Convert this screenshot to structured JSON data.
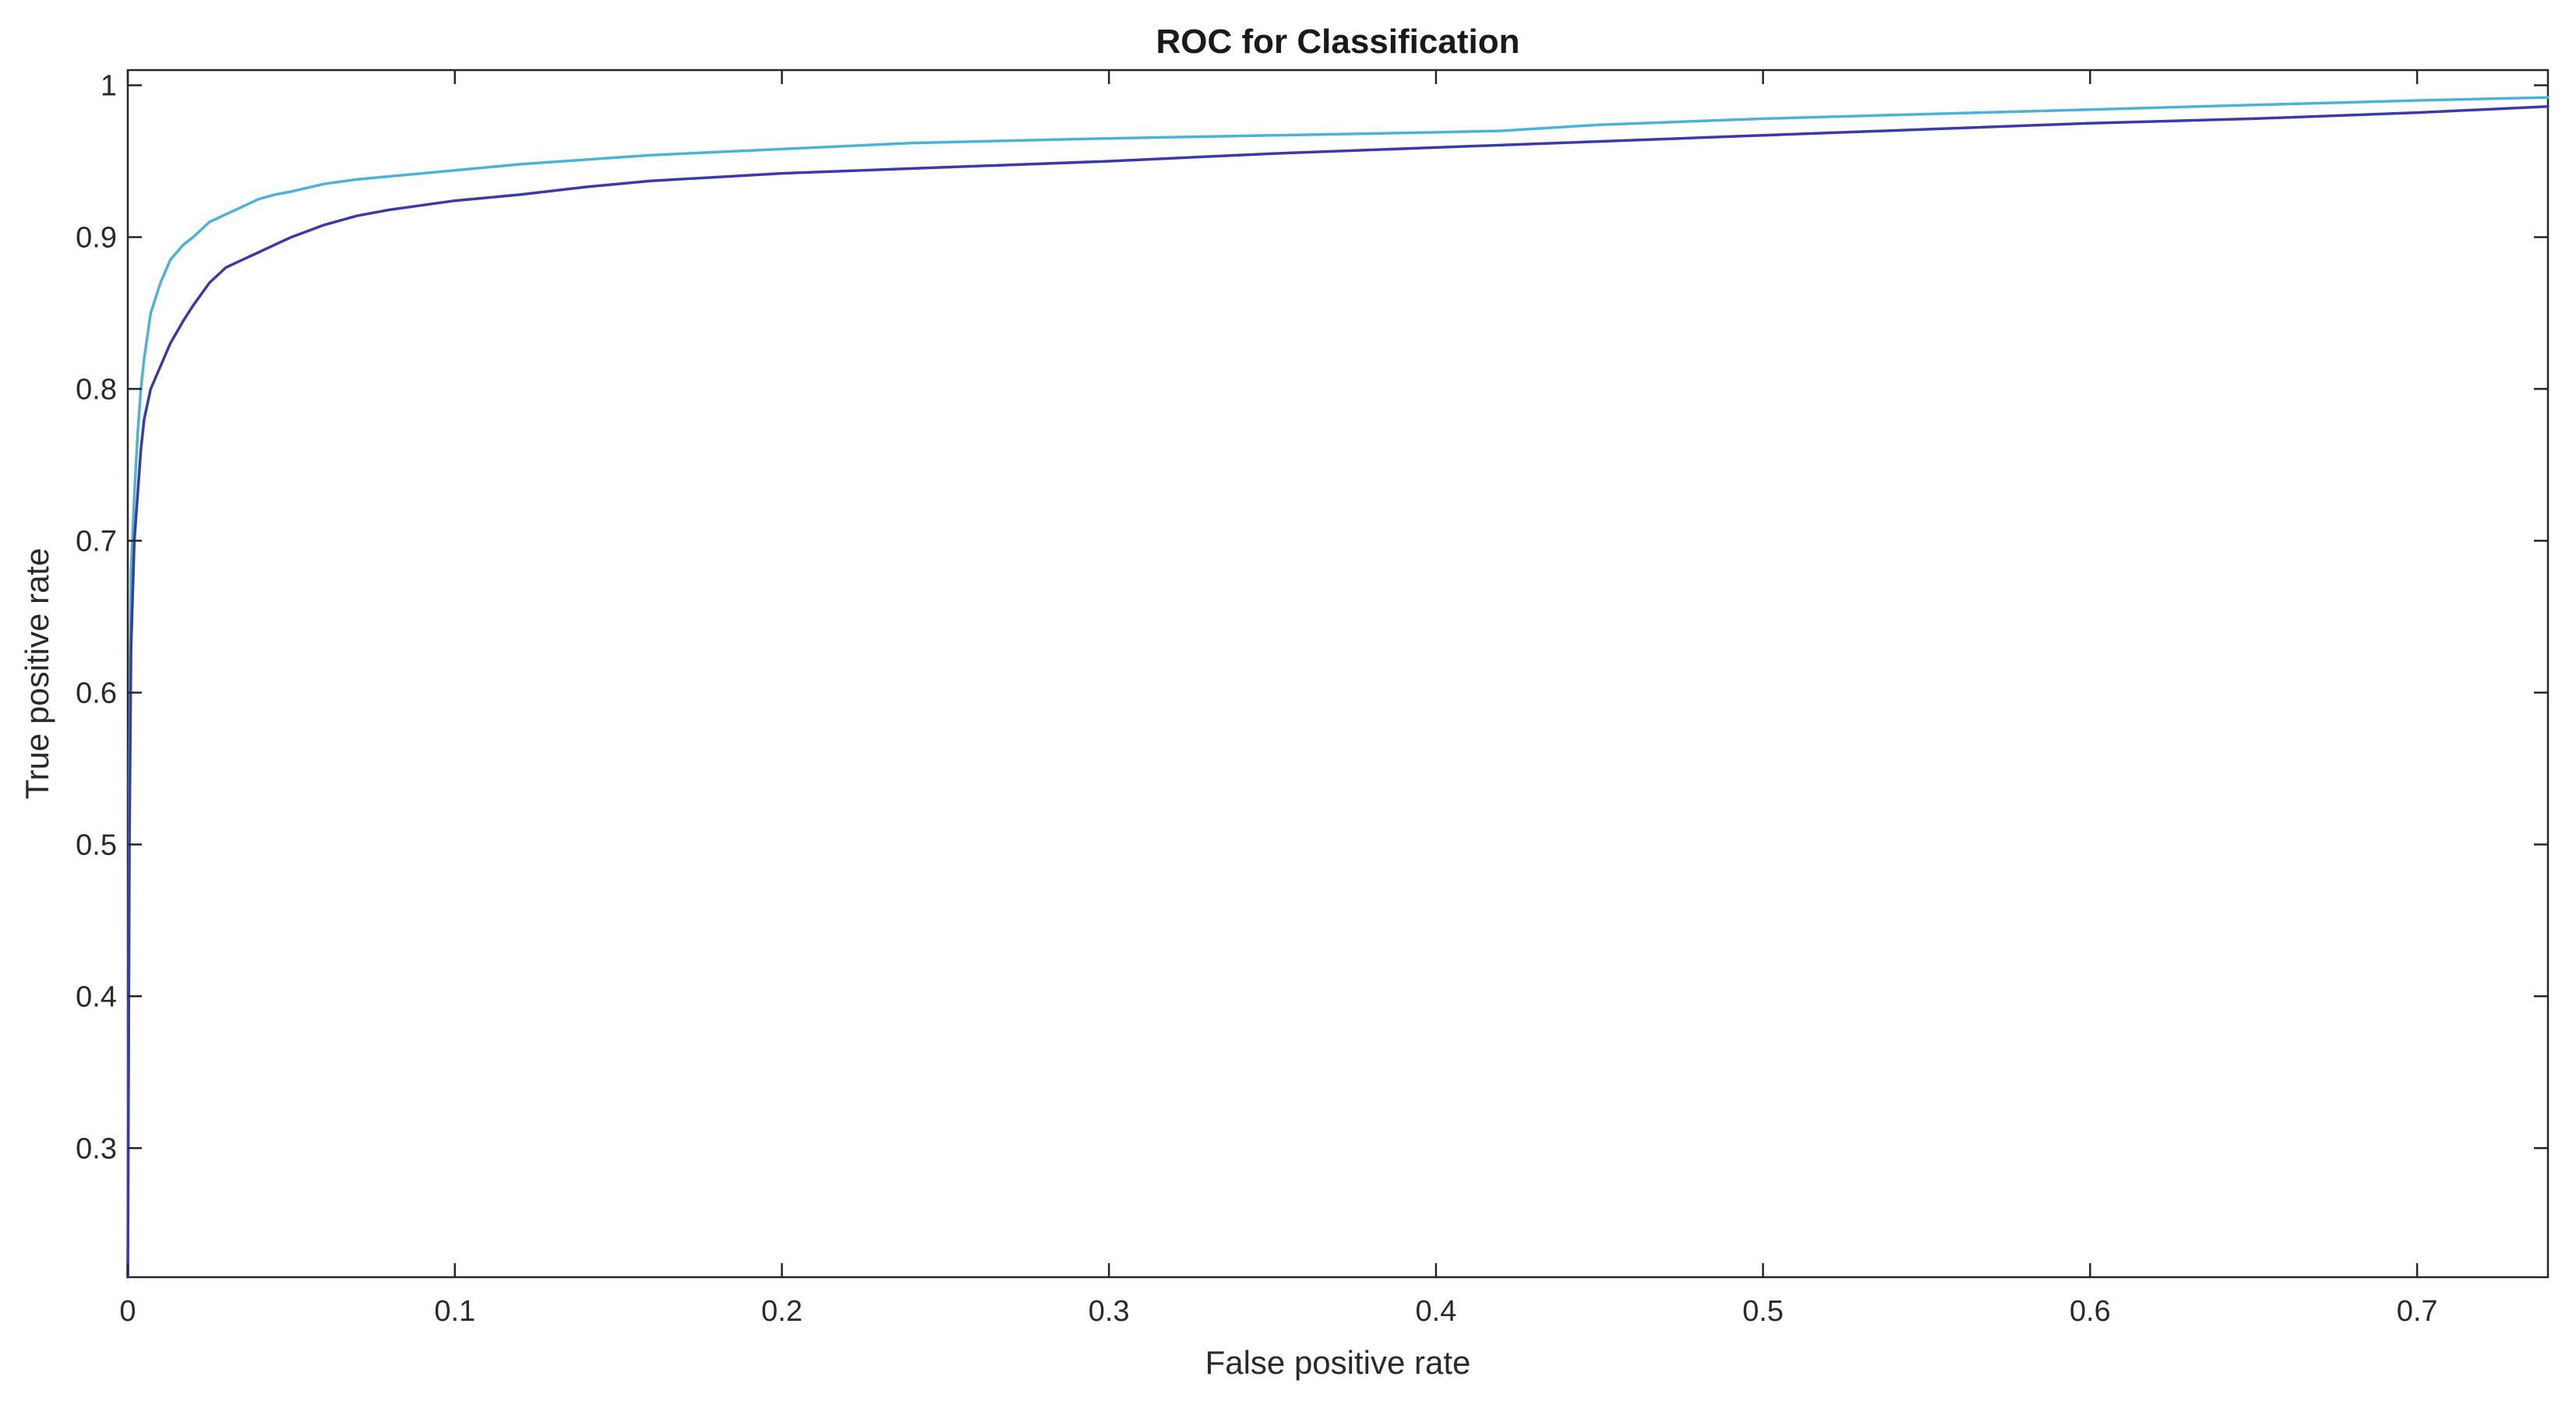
{
  "chart_data": {
    "type": "line",
    "title": "ROC for Classification",
    "xlabel": "False positive rate",
    "ylabel": "True positive rate",
    "xlim": [
      0,
      0.74
    ],
    "ylim": [
      0.215,
      1.01
    ],
    "xticks": [
      0,
      0.1,
      0.2,
      0.3,
      0.4,
      0.5,
      0.6,
      0.7
    ],
    "xtick_labels": [
      "0",
      "0.1",
      "0.2",
      "0.3",
      "0.4",
      "0.5",
      "0.6",
      "0.7"
    ],
    "yticks": [
      0.3,
      0.4,
      0.5,
      0.6,
      0.7,
      0.8,
      0.9,
      1
    ],
    "ytick_labels": [
      "0.3",
      "0.4",
      "0.5",
      "0.6",
      "0.7",
      "0.8",
      "0.9",
      "1"
    ],
    "grid": false,
    "legend": "none",
    "series": [
      {
        "color": "#4db3d6",
        "x": [
          0,
          0.0005,
          0.001,
          0.002,
          0.003,
          0.004,
          0.005,
          0.007,
          0.01,
          0.013,
          0.017,
          0.02,
          0.025,
          0.03,
          0.035,
          0.04,
          0.045,
          0.05,
          0.06,
          0.07,
          0.08,
          0.1,
          0.12,
          0.14,
          0.16,
          0.18,
          0.2,
          0.22,
          0.24,
          0.26,
          0.3,
          0.35,
          0.4,
          0.42,
          0.45,
          0.5,
          0.55,
          0.6,
          0.65,
          0.7,
          0.74
        ],
        "y": [
          0.215,
          0.55,
          0.68,
          0.73,
          0.77,
          0.8,
          0.82,
          0.85,
          0.87,
          0.885,
          0.895,
          0.9,
          0.91,
          0.915,
          0.92,
          0.925,
          0.928,
          0.93,
          0.935,
          0.938,
          0.94,
          0.944,
          0.948,
          0.951,
          0.954,
          0.956,
          0.958,
          0.96,
          0.962,
          0.963,
          0.965,
          0.967,
          0.969,
          0.97,
          0.974,
          0.978,
          0.981,
          0.984,
          0.987,
          0.99,
          0.992
        ]
      },
      {
        "color": "#3a3aa8",
        "x": [
          0,
          0.0005,
          0.001,
          0.002,
          0.003,
          0.004,
          0.005,
          0.007,
          0.01,
          0.013,
          0.017,
          0.02,
          0.025,
          0.03,
          0.035,
          0.04,
          0.045,
          0.05,
          0.06,
          0.07,
          0.08,
          0.1,
          0.12,
          0.14,
          0.16,
          0.2,
          0.25,
          0.3,
          0.35,
          0.4,
          0.45,
          0.5,
          0.55,
          0.6,
          0.65,
          0.7,
          0.74
        ],
        "y": [
          0.215,
          0.5,
          0.63,
          0.7,
          0.73,
          0.76,
          0.78,
          0.8,
          0.815,
          0.83,
          0.845,
          0.855,
          0.87,
          0.88,
          0.885,
          0.89,
          0.895,
          0.9,
          0.908,
          0.914,
          0.918,
          0.924,
          0.928,
          0.933,
          0.937,
          0.942,
          0.946,
          0.95,
          0.955,
          0.959,
          0.963,
          0.967,
          0.971,
          0.975,
          0.978,
          0.982,
          0.986
        ]
      }
    ]
  }
}
